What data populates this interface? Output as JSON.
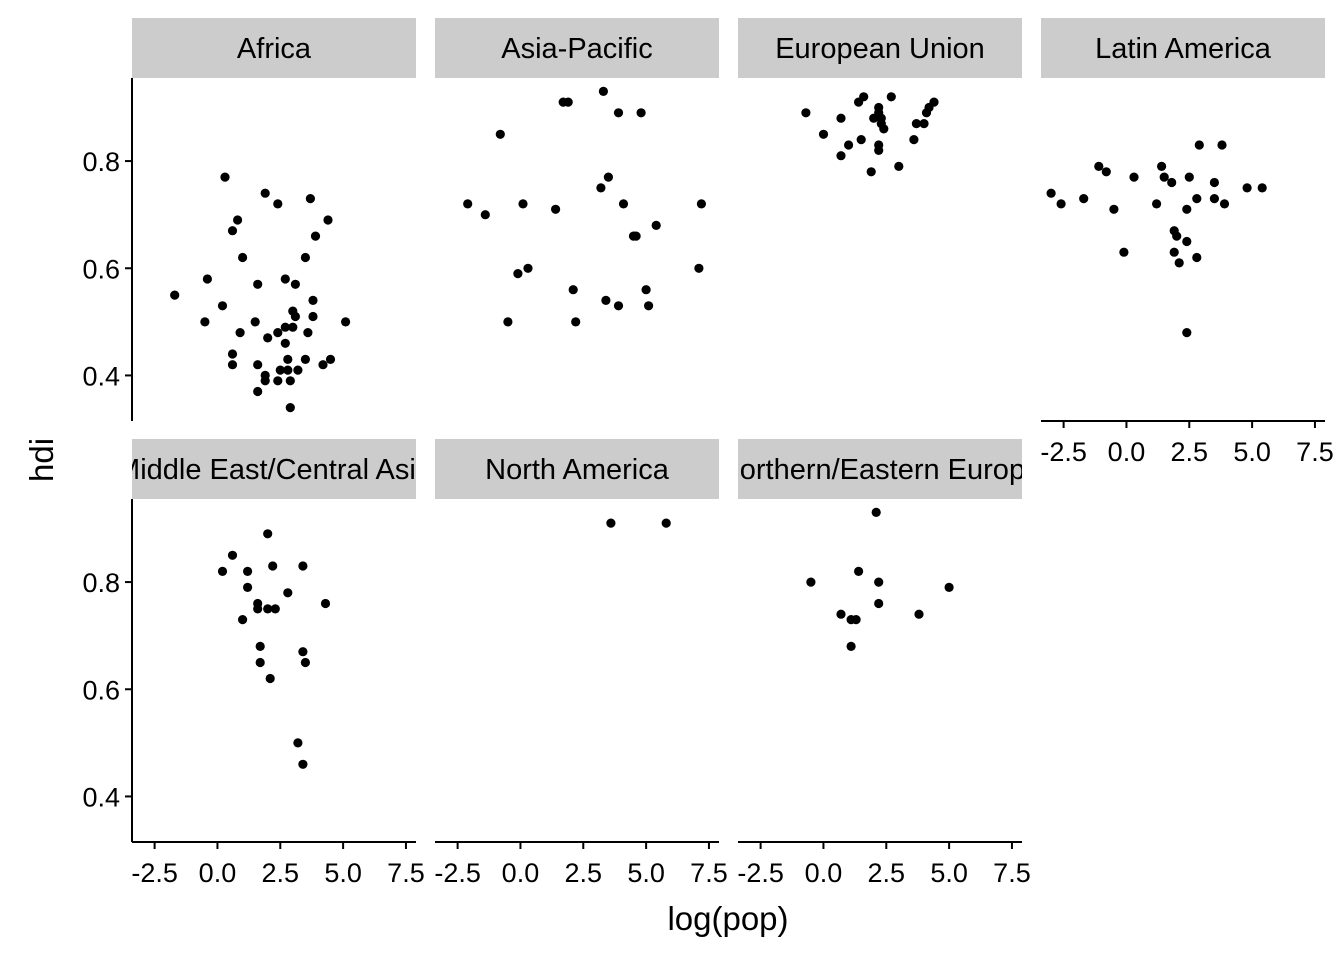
{
  "chart_data": {
    "type": "scatter",
    "layout": "facet_wrap",
    "xlabel": "log(pop)",
    "ylabel": "hdi",
    "xlim": [
      -3.4,
      7.9
    ],
    "ylim": [
      0.315,
      0.955
    ],
    "x_ticks": [
      -2.5,
      0.0,
      2.5,
      5.0,
      7.5
    ],
    "x_tick_labels": [
      "-2.5",
      "0.0",
      "2.5",
      "5.0",
      "7.5"
    ],
    "y_ticks": [
      0.4,
      0.6,
      0.8
    ],
    "y_tick_labels": [
      "0.4",
      "0.6",
      "0.8"
    ],
    "grid": false,
    "point_color": "#000000",
    "strip_color": "#cccccc",
    "panels": [
      {
        "name": "Africa",
        "points": [
          [
            0.3,
            0.77
          ],
          [
            0.8,
            0.69
          ],
          [
            0.6,
            0.67
          ],
          [
            1.0,
            0.62
          ],
          [
            -1.7,
            0.55
          ],
          [
            -0.4,
            0.58
          ],
          [
            0.2,
            0.53
          ],
          [
            -0.5,
            0.5
          ],
          [
            0.9,
            0.48
          ],
          [
            0.6,
            0.44
          ],
          [
            0.6,
            0.42
          ],
          [
            1.9,
            0.74
          ],
          [
            2.4,
            0.72
          ],
          [
            3.7,
            0.73
          ],
          [
            4.4,
            0.69
          ],
          [
            3.9,
            0.66
          ],
          [
            3.5,
            0.62
          ],
          [
            2.7,
            0.58
          ],
          [
            3.1,
            0.57
          ],
          [
            1.6,
            0.57
          ],
          [
            3.8,
            0.54
          ],
          [
            3.0,
            0.52
          ],
          [
            3.1,
            0.51
          ],
          [
            3.8,
            0.51
          ],
          [
            5.1,
            0.5
          ],
          [
            3.0,
            0.49
          ],
          [
            2.7,
            0.49
          ],
          [
            2.4,
            0.48
          ],
          [
            1.5,
            0.5
          ],
          [
            3.6,
            0.48
          ],
          [
            2.0,
            0.47
          ],
          [
            2.7,
            0.46
          ],
          [
            2.8,
            0.43
          ],
          [
            3.5,
            0.43
          ],
          [
            4.5,
            0.43
          ],
          [
            4.2,
            0.42
          ],
          [
            1.6,
            0.42
          ],
          [
            3.2,
            0.41
          ],
          [
            2.5,
            0.41
          ],
          [
            2.8,
            0.41
          ],
          [
            1.9,
            0.4
          ],
          [
            1.9,
            0.39
          ],
          [
            2.4,
            0.39
          ],
          [
            2.9,
            0.39
          ],
          [
            1.6,
            0.37
          ],
          [
            2.9,
            0.34
          ]
        ]
      },
      {
        "name": "Asia-Pacific",
        "points": [
          [
            1.7,
            0.91
          ],
          [
            1.9,
            0.91
          ],
          [
            3.3,
            0.93
          ],
          [
            3.9,
            0.89
          ],
          [
            4.8,
            0.89
          ],
          [
            -0.8,
            0.85
          ],
          [
            3.5,
            0.77
          ],
          [
            3.2,
            0.75
          ],
          [
            -2.1,
            0.72
          ],
          [
            -1.4,
            0.7
          ],
          [
            0.1,
            0.72
          ],
          [
            1.4,
            0.71
          ],
          [
            4.1,
            0.72
          ],
          [
            7.2,
            0.72
          ],
          [
            4.5,
            0.66
          ],
          [
            4.6,
            0.66
          ],
          [
            5.4,
            0.68
          ],
          [
            -0.1,
            0.59
          ],
          [
            0.3,
            0.6
          ],
          [
            7.1,
            0.6
          ],
          [
            2.1,
            0.56
          ],
          [
            5.0,
            0.56
          ],
          [
            3.4,
            0.54
          ],
          [
            3.9,
            0.53
          ],
          [
            5.1,
            0.53
          ],
          [
            -0.5,
            0.5
          ],
          [
            2.2,
            0.5
          ]
        ]
      },
      {
        "name": "European Union",
        "points": [
          [
            -0.7,
            0.89
          ],
          [
            1.4,
            0.91
          ],
          [
            1.6,
            0.92
          ],
          [
            2.2,
            0.9
          ],
          [
            2.7,
            0.92
          ],
          [
            4.2,
            0.9
          ],
          [
            4.4,
            0.91
          ],
          [
            0.7,
            0.88
          ],
          [
            2.0,
            0.88
          ],
          [
            2.2,
            0.89
          ],
          [
            2.3,
            0.88
          ],
          [
            2.3,
            0.87
          ],
          [
            3.7,
            0.87
          ],
          [
            4.0,
            0.87
          ],
          [
            4.1,
            0.89
          ],
          [
            2.4,
            0.86
          ],
          [
            0.0,
            0.85
          ],
          [
            1.5,
            0.84
          ],
          [
            2.2,
            0.83
          ],
          [
            3.6,
            0.84
          ],
          [
            1.0,
            0.83
          ],
          [
            2.2,
            0.82
          ],
          [
            0.7,
            0.81
          ],
          [
            3.0,
            0.79
          ],
          [
            1.9,
            0.78
          ]
        ]
      },
      {
        "name": "Latin America",
        "points": [
          [
            -3.0,
            0.74
          ],
          [
            -2.6,
            0.72
          ],
          [
            -1.7,
            0.73
          ],
          [
            -1.1,
            0.79
          ],
          [
            -0.8,
            0.78
          ],
          [
            -0.5,
            0.71
          ],
          [
            0.3,
            0.77
          ],
          [
            -0.1,
            0.63
          ],
          [
            1.2,
            0.72
          ],
          [
            1.4,
            0.79
          ],
          [
            1.5,
            0.77
          ],
          [
            1.8,
            0.76
          ],
          [
            2.5,
            0.77
          ],
          [
            2.4,
            0.71
          ],
          [
            2.8,
            0.73
          ],
          [
            2.9,
            0.83
          ],
          [
            3.8,
            0.83
          ],
          [
            3.5,
            0.76
          ],
          [
            3.5,
            0.73
          ],
          [
            3.9,
            0.72
          ],
          [
            4.8,
            0.75
          ],
          [
            5.4,
            0.75
          ],
          [
            1.9,
            0.67
          ],
          [
            2.0,
            0.66
          ],
          [
            1.9,
            0.63
          ],
          [
            2.1,
            0.61
          ],
          [
            2.4,
            0.65
          ],
          [
            2.8,
            0.62
          ],
          [
            2.4,
            0.48
          ]
        ]
      },
      {
        "name": "Middle East/Central Asia",
        "points": [
          [
            2.0,
            0.89
          ],
          [
            0.6,
            0.85
          ],
          [
            0.2,
            0.82
          ],
          [
            1.2,
            0.82
          ],
          [
            2.2,
            0.83
          ],
          [
            3.4,
            0.83
          ],
          [
            1.2,
            0.79
          ],
          [
            2.8,
            0.78
          ],
          [
            4.3,
            0.76
          ],
          [
            1.6,
            0.76
          ],
          [
            1.6,
            0.75
          ],
          [
            2.0,
            0.75
          ],
          [
            2.3,
            0.75
          ],
          [
            1.0,
            0.73
          ],
          [
            1.7,
            0.68
          ],
          [
            3.4,
            0.67
          ],
          [
            1.7,
            0.65
          ],
          [
            3.5,
            0.65
          ],
          [
            2.1,
            0.62
          ],
          [
            3.2,
            0.5
          ],
          [
            3.4,
            0.46
          ]
        ]
      },
      {
        "name": "North America",
        "points": [
          [
            3.6,
            0.91
          ],
          [
            5.8,
            0.91
          ]
        ]
      },
      {
        "name": "Northern/Eastern Europe",
        "points": [
          [
            2.1,
            0.93
          ],
          [
            -0.5,
            0.8
          ],
          [
            1.4,
            0.82
          ],
          [
            2.2,
            0.8
          ],
          [
            5.0,
            0.79
          ],
          [
            2.2,
            0.76
          ],
          [
            0.7,
            0.74
          ],
          [
            3.8,
            0.74
          ],
          [
            1.1,
            0.73
          ],
          [
            1.3,
            0.73
          ],
          [
            1.1,
            0.68
          ]
        ]
      }
    ]
  }
}
